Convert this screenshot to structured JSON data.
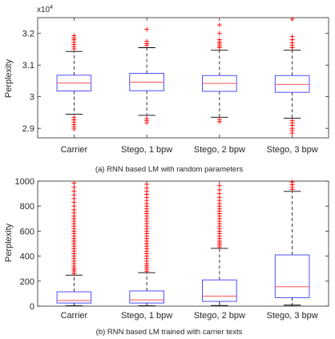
{
  "chart_data": [
    {
      "type": "box",
      "categories": [
        "Carrier",
        "Stego, 1 bpw",
        "Stego, 2 bpw",
        "Stego, 3 bpw"
      ],
      "ylabel": "Perplexity",
      "ylim": [
        2.87,
        3.25
      ],
      "yticks": [
        "2.9",
        "3",
        "3.1",
        "3.2"
      ],
      "y_multiplier_base": "x10",
      "y_multiplier_exp": "4",
      "caption": "(a) RNN based LM with random parameters",
      "colors": {
        "box": "#3b3bff",
        "median": "#ff3b3b",
        "outlier": "#ff0000",
        "whisker": "#000000"
      },
      "boxes": [
        {
          "q1": 3.018,
          "median": 3.043,
          "q3": 3.068,
          "whisker_low": 2.945,
          "whisker_high": 3.143,
          "outliers": [
            2.935,
            2.927,
            2.92,
            2.912,
            2.905,
            2.898,
            3.151,
            3.158,
            3.165,
            3.172,
            3.18,
            3.186,
            3.193
          ]
        },
        {
          "q1": 3.019,
          "median": 3.046,
          "q3": 3.074,
          "whisker_low": 2.941,
          "whisker_high": 3.155,
          "outliers": [
            2.931,
            2.925,
            2.918,
            3.162,
            3.168,
            3.175,
            3.213
          ]
        },
        {
          "q1": 3.017,
          "median": 3.042,
          "q3": 3.067,
          "whisker_low": 2.935,
          "whisker_high": 3.147,
          "outliers": [
            2.928,
            2.921,
            3.155,
            3.161,
            3.167,
            3.173,
            3.18,
            3.2,
            3.227
          ]
        },
        {
          "q1": 3.014,
          "median": 3.039,
          "q3": 3.067,
          "whisker_low": 2.932,
          "whisker_high": 3.147,
          "outliers": [
            2.925,
            2.917,
            2.909,
            2.9,
            2.893,
            2.885,
            3.155,
            3.162,
            3.17,
            3.18,
            3.19,
            3.245
          ]
        }
      ]
    },
    {
      "type": "box",
      "categories": [
        "Carrier",
        "Stego, 1 bpw",
        "Stego, 2 bpw",
        "Stego, 3 bpw"
      ],
      "ylabel": "Perplexity",
      "ylim": [
        0,
        1000
      ],
      "yticks": [
        "0",
        "200",
        "400",
        "600",
        "800",
        "1000"
      ],
      "caption": "(b) RNN based LM trained with carrier texts",
      "colors": {
        "box": "#3b3bff",
        "median": "#ff3b3b",
        "outlier": "#ff0000",
        "whisker": "#000000"
      },
      "boxes": [
        {
          "q1": 25,
          "median": 45,
          "q3": 115,
          "whisker_low": 3,
          "whisker_high": 248,
          "outliers": [
            260,
            275,
            290,
            305,
            320,
            340,
            360,
            380,
            400,
            420,
            440,
            460,
            480,
            500,
            520,
            540,
            560,
            580,
            600,
            620,
            640,
            660,
            680,
            700,
            720,
            745,
            770,
            800,
            830,
            860,
            890,
            920,
            950,
            985
          ]
        },
        {
          "q1": 25,
          "median": 50,
          "q3": 122,
          "whisker_low": 3,
          "whisker_high": 268,
          "outliers": [
            280,
            295,
            310,
            325,
            340,
            360,
            380,
            400,
            420,
            440,
            460,
            480,
            500,
            520,
            540,
            560,
            580,
            600,
            620,
            640,
            660,
            680,
            700,
            720,
            740,
            760,
            780,
            800,
            820,
            845,
            870,
            895,
            920,
            945,
            975
          ]
        },
        {
          "q1": 38,
          "median": 80,
          "q3": 210,
          "whisker_low": 5,
          "whisker_high": 462,
          "outliers": [
            475,
            490,
            505,
            520,
            540,
            560,
            580,
            600,
            620,
            640,
            660,
            680,
            700,
            720,
            740,
            760,
            780,
            800,
            820,
            845,
            870,
            900,
            930,
            965
          ]
        },
        {
          "q1": 68,
          "median": 155,
          "q3": 410,
          "whisker_low": 8,
          "whisker_high": 918,
          "outliers": [
            932,
            950,
            972,
            992
          ]
        }
      ]
    }
  ]
}
